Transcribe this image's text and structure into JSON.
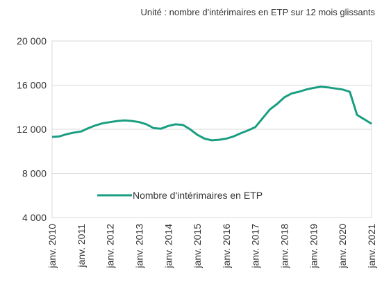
{
  "chart_data": {
    "type": "line",
    "subtitle": "Unité : nombre d'intérimaires en ETP sur 12 mois glissants",
    "categories": [
      "janv. 2010",
      null,
      null,
      null,
      "janv. 2011",
      null,
      null,
      null,
      "janv. 2012",
      null,
      null,
      null,
      "janv. 2013",
      null,
      null,
      null,
      "janv. 2014",
      null,
      null,
      null,
      "janv. 2015",
      null,
      null,
      null,
      "janv. 2016",
      null,
      null,
      null,
      "janv. 2017",
      null,
      null,
      null,
      "janv. 2018",
      null,
      null,
      null,
      "janv. 2019",
      null,
      null,
      null,
      "janv. 2020",
      null,
      null,
      null,
      "janv. 2021"
    ],
    "series": [
      {
        "name": "Nombre d'intérimaires en ETP",
        "color": "#1a9e82",
        "values": [
          11300,
          11350,
          11550,
          11700,
          11800,
          12100,
          12350,
          12550,
          12650,
          12750,
          12800,
          12750,
          12650,
          12450,
          12100,
          12050,
          12300,
          12450,
          12400,
          12000,
          11500,
          11150,
          11000,
          11050,
          11150,
          11350,
          11650,
          11900,
          12200,
          13000,
          13800,
          14300,
          14900,
          15250,
          15400,
          15600,
          15750,
          15850,
          15800,
          15700,
          15600,
          15400,
          13300,
          12900,
          12500
        ]
      }
    ],
    "ylim": [
      4000,
      20000
    ],
    "yticks": [
      {
        "value": 4000,
        "label": "4 000"
      },
      {
        "value": 8000,
        "label": "8 000"
      },
      {
        "value": 12000,
        "label": "12 000"
      },
      {
        "value": 16000,
        "label": "16 000"
      },
      {
        "value": 20000,
        "label": "20 000"
      }
    ],
    "grid": true
  }
}
